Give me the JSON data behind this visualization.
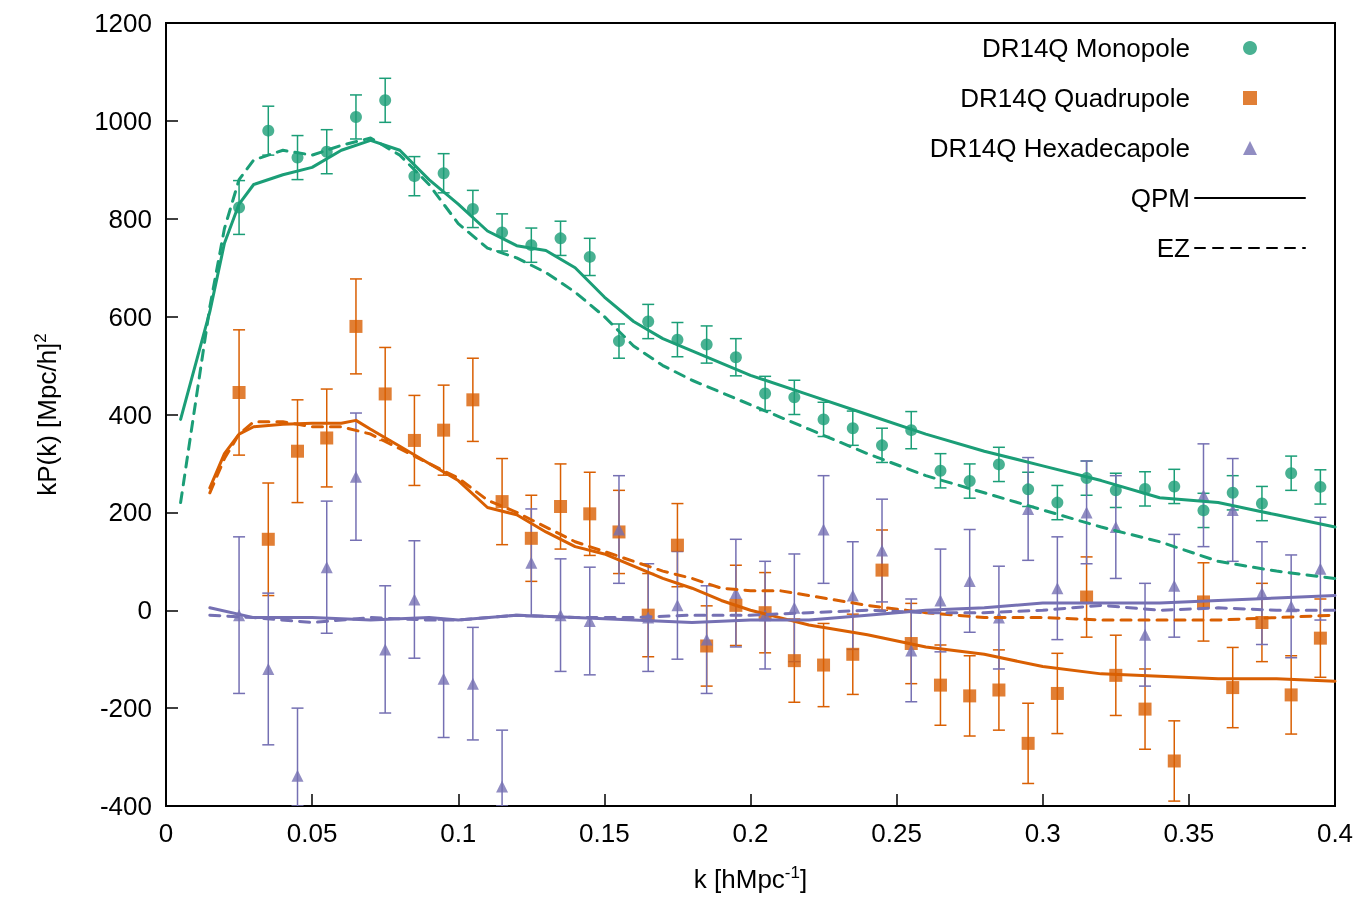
{
  "chart_data": {
    "type": "scatter",
    "xlabel": "k [hMpc$^{-1}$]",
    "ylabel": "kP(k) [Mpc/h]$^{2}$",
    "xlim": [
      0,
      0.4
    ],
    "ylim": [
      -400,
      1200
    ],
    "xticks": [
      0,
      0.05,
      0.1,
      0.15,
      0.2,
      0.25,
      0.3,
      0.35,
      0.4
    ],
    "yticks": [
      -400,
      -200,
      0,
      200,
      400,
      600,
      800,
      1000,
      1200
    ],
    "grid": false,
    "legend": "top right",
    "x": [
      0.025,
      0.035,
      0.045,
      0.055,
      0.065,
      0.075,
      0.085,
      0.095,
      0.105,
      0.115,
      0.125,
      0.135,
      0.145,
      0.155,
      0.165,
      0.175,
      0.185,
      0.195,
      0.205,
      0.215,
      0.225,
      0.235,
      0.245,
      0.255,
      0.265,
      0.275,
      0.285,
      0.295,
      0.305,
      0.315,
      0.325,
      0.335,
      0.345,
      0.355,
      0.365,
      0.375,
      0.385,
      0.395
    ],
    "series": [
      {
        "name": "DR14Q Monopole",
        "color": "#1b9e77",
        "marker": "circle",
        "values": [
          823,
          980,
          925,
          937,
          1008,
          1042,
          887,
          893,
          820,
          772,
          746,
          760,
          722,
          550,
          590,
          553,
          543,
          517,
          443,
          435,
          390,
          372,
          337,
          368,
          285,
          264,
          298,
          247,
          220,
          270,
          245,
          248,
          253,
          204,
          240,
          218,
          280,
          252
        ],
        "errors": [
          55,
          50,
          45,
          45,
          45,
          45,
          40,
          40,
          38,
          38,
          35,
          35,
          38,
          35,
          35,
          35,
          38,
          38,
          35,
          35,
          35,
          35,
          35,
          38,
          35,
          35,
          35,
          35,
          35,
          35,
          35,
          35,
          35,
          35,
          35,
          35,
          35,
          35
        ]
      },
      {
        "name": "DR14Q Quadrupole",
        "color": "#d95f02",
        "marker": "square",
        "values": [
          445,
          145,
          325,
          352,
          580,
          442,
          347,
          368,
          430,
          222,
          147,
          212,
          197,
          160,
          -10,
          133,
          -73,
          10,
          -5,
          -103,
          -112,
          -90,
          82,
          -68,
          -153,
          -175,
          -163,
          -272,
          -170,
          27,
          -133,
          -202,
          -308,
          17,
          -158,
          -25,
          -173,
          -57
        ],
        "errors": [
          128,
          115,
          105,
          100,
          97,
          95,
          92,
          92,
          85,
          88,
          88,
          87,
          85,
          85,
          85,
          85,
          82,
          82,
          82,
          85,
          85,
          82,
          82,
          82,
          82,
          82,
          82,
          82,
          82,
          82,
          82,
          82,
          82,
          80,
          82,
          80,
          80,
          80
        ]
      },
      {
        "name": "DR14Q Hexadecapole",
        "color": "#7570b3",
        "marker": "triangle",
        "values": [
          -10,
          -120,
          -338,
          88,
          273,
          -80,
          22,
          -140,
          -150,
          -360,
          97,
          -10,
          -22,
          165,
          -15,
          10,
          -60,
          35,
          -10,
          5,
          165,
          30,
          122,
          -82,
          20,
          60,
          -15,
          207,
          45,
          200,
          170,
          -50,
          50,
          235,
          205,
          35,
          8,
          85
        ],
        "errors": [
          160,
          155,
          [
            -400,
            -200
          ],
          135,
          130,
          130,
          120,
          120,
          115,
          [
            -400,
            -245
          ],
          110,
          115,
          110,
          110,
          110,
          110,
          110,
          110,
          110,
          110,
          110,
          110,
          105,
          105,
          105,
          105,
          105,
          105,
          105,
          105,
          105,
          105,
          105,
          105,
          105,
          105,
          105,
          105
        ]
      },
      {
        "type": "line",
        "color": "#1b9e77",
        "line_style": "solid",
        "marker": "none",
        "x": [
          0.005,
          0.015,
          0.02,
          0.025,
          0.03,
          0.04,
          0.05,
          0.06,
          0.07,
          0.08,
          0.09,
          0.1,
          0.11,
          0.12,
          0.13,
          0.14,
          0.15,
          0.16,
          0.17,
          0.18,
          0.2,
          0.22,
          0.24,
          0.26,
          0.28,
          0.3,
          0.32,
          0.34,
          0.36,
          0.38,
          0.4
        ],
        "values": [
          390,
          610,
          750,
          830,
          870,
          890,
          905,
          940,
          960,
          940,
          880,
          830,
          775,
          745,
          735,
          700,
          640,
          590,
          555,
          530,
          480,
          440,
          400,
          360,
          325,
          295,
          265,
          230,
          220,
          195,
          170
        ]
      },
      {
        "type": "line",
        "color": "#1b9e77",
        "line_style": "dashed",
        "marker": "none",
        "x": [
          0.005,
          0.01,
          0.015,
          0.02,
          0.025,
          0.03,
          0.04,
          0.05,
          0.06,
          0.07,
          0.08,
          0.09,
          0.1,
          0.11,
          0.12,
          0.13,
          0.14,
          0.15,
          0.16,
          0.17,
          0.18,
          0.2,
          0.22,
          0.24,
          0.26,
          0.28,
          0.3,
          0.32,
          0.34,
          0.36,
          0.38,
          0.4
        ],
        "values": [
          220,
          420,
          620,
          780,
          880,
          920,
          940,
          930,
          950,
          965,
          930,
          870,
          790,
          740,
          720,
          690,
          650,
          600,
          540,
          500,
          470,
          420,
          370,
          320,
          275,
          240,
          205,
          170,
          140,
          100,
          80,
          65
        ]
      },
      {
        "type": "line",
        "color": "#d95f02",
        "line_style": "solid",
        "marker": "none",
        "x": [
          0.015,
          0.02,
          0.025,
          0.03,
          0.04,
          0.05,
          0.06,
          0.065,
          0.07,
          0.08,
          0.09,
          0.1,
          0.11,
          0.12,
          0.13,
          0.14,
          0.15,
          0.16,
          0.17,
          0.18,
          0.19,
          0.2,
          0.21,
          0.22,
          0.24,
          0.26,
          0.28,
          0.3,
          0.32,
          0.34,
          0.36,
          0.38,
          0.4
        ],
        "values": [
          250,
          320,
          360,
          375,
          380,
          382,
          382,
          388,
          370,
          335,
          300,
          265,
          210,
          195,
          160,
          130,
          115,
          90,
          65,
          45,
          20,
          0,
          -15,
          -30,
          -50,
          -75,
          -90,
          -115,
          -130,
          -135,
          -140,
          -140,
          -145
        ]
      },
      {
        "type": "line",
        "color": "#d95f02",
        "line_style": "dashed",
        "marker": "none",
        "x": [
          0.015,
          0.02,
          0.025,
          0.03,
          0.04,
          0.05,
          0.06,
          0.07,
          0.08,
          0.09,
          0.1,
          0.11,
          0.12,
          0.13,
          0.14,
          0.15,
          0.16,
          0.17,
          0.18,
          0.19,
          0.2,
          0.21,
          0.22,
          0.24,
          0.26,
          0.28,
          0.3,
          0.32,
          0.34,
          0.36,
          0.38,
          0.4
        ],
        "values": [
          240,
          310,
          360,
          385,
          385,
          375,
          375,
          360,
          330,
          300,
          270,
          225,
          200,
          170,
          140,
          120,
          100,
          80,
          65,
          45,
          40,
          40,
          30,
          10,
          -5,
          -15,
          -15,
          -20,
          -20,
          -20,
          -15,
          -10
        ]
      },
      {
        "type": "line",
        "color": "#7570b3",
        "line_style": "solid",
        "marker": "none",
        "x": [
          0.015,
          0.03,
          0.05,
          0.07,
          0.09,
          0.1,
          0.12,
          0.14,
          0.16,
          0.18,
          0.2,
          0.22,
          0.24,
          0.26,
          0.28,
          0.3,
          0.32,
          0.34,
          0.36,
          0.38,
          0.4
        ],
        "values": [
          5,
          -15,
          -15,
          -20,
          -15,
          -20,
          -10,
          -15,
          -20,
          -25,
          -20,
          -20,
          -10,
          0,
          5,
          15,
          15,
          15,
          20,
          25,
          30
        ]
      },
      {
        "type": "line",
        "color": "#7570b3",
        "line_style": "dashed",
        "marker": "none",
        "x": [
          0.015,
          0.03,
          0.05,
          0.07,
          0.09,
          0.1,
          0.12,
          0.14,
          0.16,
          0.18,
          0.2,
          0.22,
          0.24,
          0.26,
          0.28,
          0.3,
          0.32,
          0.34,
          0.36,
          0.38,
          0.4
        ],
        "values": [
          -10,
          -15,
          -25,
          -15,
          -20,
          -20,
          -10,
          -15,
          -15,
          -10,
          -10,
          -5,
          0,
          -5,
          -5,
          0,
          10,
          0,
          5,
          0,
          0
        ]
      },
      {
        "type": "line",
        "name": "QPM",
        "color": "#000000",
        "line_style": "solid",
        "marker": "none",
        "values": [
          null,
          null,
          null,
          null,
          null,
          null,
          null,
          null,
          null,
          null,
          null,
          null,
          null,
          null,
          null,
          null,
          null,
          null,
          null,
          null,
          null,
          null,
          null,
          null,
          null,
          null,
          null,
          null,
          null,
          null,
          null,
          null,
          null,
          null,
          null,
          null,
          null,
          null
        ]
      },
      {
        "type": "line",
        "name": "EZ",
        "color": "#000000",
        "line_style": "dashed",
        "marker": "none",
        "values": [
          null,
          null,
          null,
          null,
          null,
          null,
          null,
          null,
          null,
          null,
          null,
          null,
          null,
          null,
          null,
          null,
          null,
          null,
          null,
          null,
          null,
          null,
          null,
          null,
          null,
          null,
          null,
          null,
          null,
          null,
          null,
          null,
          null,
          null,
          null,
          null,
          null,
          null
        ]
      }
    ]
  }
}
